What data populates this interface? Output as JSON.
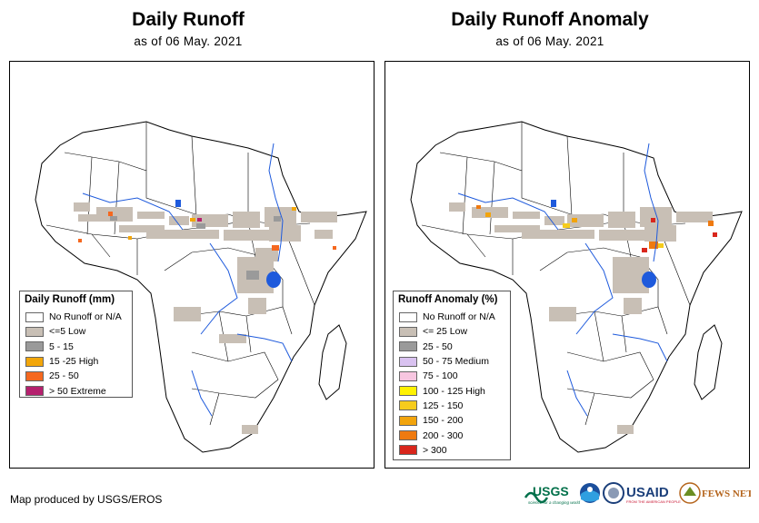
{
  "left": {
    "title": "Daily Runoff",
    "subtitle": "as of 06 May. 2021",
    "legend_title": "Daily Runoff (mm)",
    "legend": [
      {
        "label": "No Runoff or N/A",
        "color": "#ffffff"
      },
      {
        "label": "<=5 Low",
        "color": "#c8bfb5"
      },
      {
        "label": "5 - 15",
        "color": "#9a9a9a"
      },
      {
        "label": "15 -25 High",
        "color": "#f2a60a"
      },
      {
        "label": "25 - 50",
        "color": "#f5681f"
      },
      {
        "label": "> 50 Extreme",
        "color": "#b5206e"
      }
    ]
  },
  "right": {
    "title": "Daily Runoff Anomaly",
    "subtitle": "as of 06 May. 2021",
    "legend_title": "Runoff Anomaly (%)",
    "legend": [
      {
        "label": "No Runoff or N/A",
        "color": "#ffffff"
      },
      {
        "label": "<= 25 Low",
        "color": "#c8bfb5"
      },
      {
        "label": "25 - 50",
        "color": "#9a9a9a"
      },
      {
        "label": "50 - 75 Medium",
        "color": "#d9c2f0"
      },
      {
        "label": "75 - 100",
        "color": "#f7c6e0"
      },
      {
        "label": "100 - 125 High",
        "color": "#fff200"
      },
      {
        "label": "125 - 150",
        "color": "#f6cc1c"
      },
      {
        "label": "150 - 200",
        "color": "#f2a40c"
      },
      {
        "label": "200 - 300",
        "color": "#ef7a10"
      },
      {
        "label": "> 300",
        "color": "#d9261c"
      }
    ]
  },
  "footer": "Map produced by USGS/EROS",
  "logos": {
    "usgs": "USGS",
    "usgs_tagline": "science for a changing world",
    "noaa": "NOAA",
    "usaid": "USAID",
    "usaid_tagline": "FROM THE AMERICAN PEOPLE",
    "fewsnet": "FEWS NET"
  }
}
